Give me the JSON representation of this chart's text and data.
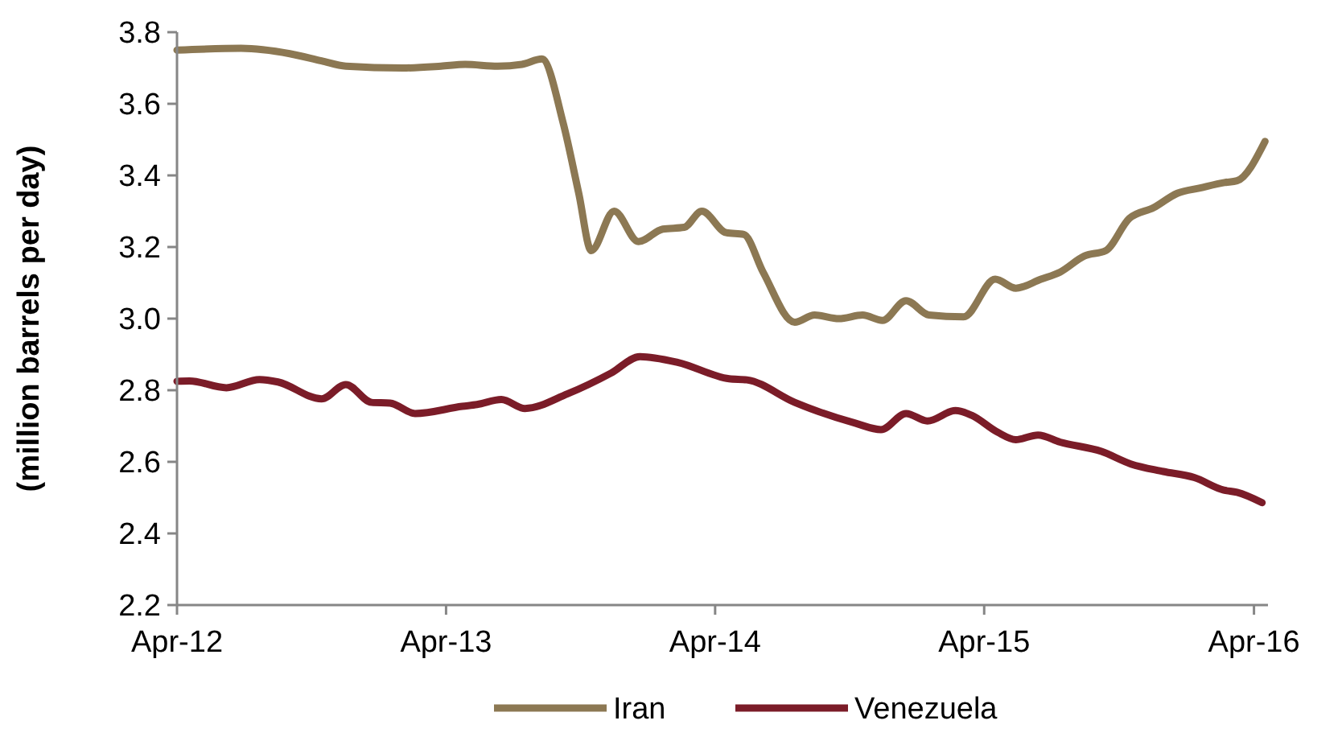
{
  "chart_data": {
    "type": "line",
    "ylabel": "(million barrels per day)",
    "legend": "bottom",
    "grid": false,
    "line_style": "solid",
    "marker": "none",
    "xlim": [
      "2012-04-01",
      "2016-04-20"
    ],
    "xticks": [
      {
        "value": "2012-04-01",
        "label": "Apr-12"
      },
      {
        "value": "2013-04-01",
        "label": "Apr-13"
      },
      {
        "value": "2014-04-01",
        "label": "Apr-14"
      },
      {
        "value": "2015-04-01",
        "label": "Apr-15"
      },
      {
        "value": "2016-04-01",
        "label": "Apr-16"
      }
    ],
    "ylim": [
      2.2,
      3.8
    ],
    "yticks": [
      {
        "value": 2.2,
        "label": "2.2"
      },
      {
        "value": 2.4,
        "label": "2.4"
      },
      {
        "value": 2.6,
        "label": "2.6"
      },
      {
        "value": 2.8,
        "label": "2.8"
      },
      {
        "value": 3,
        "label": "3.0"
      },
      {
        "value": 3.2,
        "label": "3.2"
      },
      {
        "value": 3.4,
        "label": "3.4"
      },
      {
        "value": 3.6,
        "label": "3.6"
      },
      {
        "value": 3.8,
        "label": "3.8"
      }
    ],
    "series": [
      {
        "name": "Iran",
        "color": "#8c7853",
        "x": [
          "2012-04-01",
          "2012-06-27",
          "2012-09-01",
          "2012-10-14",
          "2012-11-16",
          "2013-02-01",
          "2013-03-25",
          "2013-04-27",
          "2013-06-10",
          "2013-07-13",
          "2013-08-09",
          "2013-09-07",
          "2013-09-28",
          "2013-10-15",
          "2013-11-15",
          "2013-12-18",
          "2014-01-20",
          "2014-02-18",
          "2014-03-14",
          "2014-04-16",
          "2014-05-10",
          "2014-06-05",
          "2014-07-18",
          "2014-08-14",
          "2014-09-16",
          "2014-10-18",
          "2014-11-14",
          "2014-12-16",
          "2015-01-16",
          "2015-03-04",
          "2015-04-16",
          "2015-05-14",
          "2015-06-17",
          "2015-07-13",
          "2015-08-15",
          "2015-09-13",
          "2015-10-15",
          "2015-11-17",
          "2015-12-19",
          "2016-01-19",
          "2016-02-21",
          "2016-03-09",
          "2016-04-16"
        ],
        "values": [
          3.75,
          3.755,
          3.74,
          3.72,
          3.705,
          3.7,
          3.705,
          3.71,
          3.705,
          3.71,
          3.725,
          3.545,
          3.35,
          3.19,
          3.3,
          3.215,
          3.25,
          3.255,
          3.3,
          3.24,
          3.235,
          3.13,
          2.99,
          3.01,
          3.0,
          3.01,
          2.995,
          3.05,
          3.01,
          3.005,
          3.11,
          3.085,
          3.11,
          3.13,
          3.175,
          3.19,
          3.28,
          3.31,
          3.35,
          3.365,
          3.38,
          3.385,
          3.495
        ]
      },
      {
        "name": "Venezuela",
        "color": "#7b1c28",
        "x": [
          "2012-04-01",
          "2012-04-18",
          "2012-06-07",
          "2012-07-22",
          "2012-08-16",
          "2012-10-14",
          "2012-11-16",
          "2012-12-21",
          "2013-01-15",
          "2013-02-18",
          "2013-04-23",
          "2013-05-13",
          "2013-06-15",
          "2013-07-17",
          "2013-09-13",
          "2013-11-11",
          "2013-12-20",
          "2014-02-09",
          "2014-04-20",
          "2014-05-14",
          "2014-07-18",
          "2014-10-08",
          "2014-11-12",
          "2014-12-16",
          "2015-01-14",
          "2015-02-21",
          "2015-03-15",
          "2015-04-19",
          "2015-05-14",
          "2015-06-13",
          "2015-07-13",
          "2015-09-07",
          "2015-10-17",
          "2015-11-30",
          "2016-01-11",
          "2016-02-20",
          "2016-03-09",
          "2016-04-12"
        ],
        "values": [
          2.825,
          2.826,
          2.807,
          2.83,
          2.823,
          2.776,
          2.816,
          2.766,
          2.764,
          2.735,
          2.755,
          2.76,
          2.774,
          2.749,
          2.79,
          2.848,
          2.894,
          2.878,
          2.832,
          2.829,
          2.766,
          2.708,
          2.69,
          2.735,
          2.714,
          2.743,
          2.73,
          2.683,
          2.662,
          2.675,
          2.655,
          2.629,
          2.594,
          2.573,
          2.556,
          2.521,
          2.515,
          2.486
        ]
      }
    ]
  }
}
